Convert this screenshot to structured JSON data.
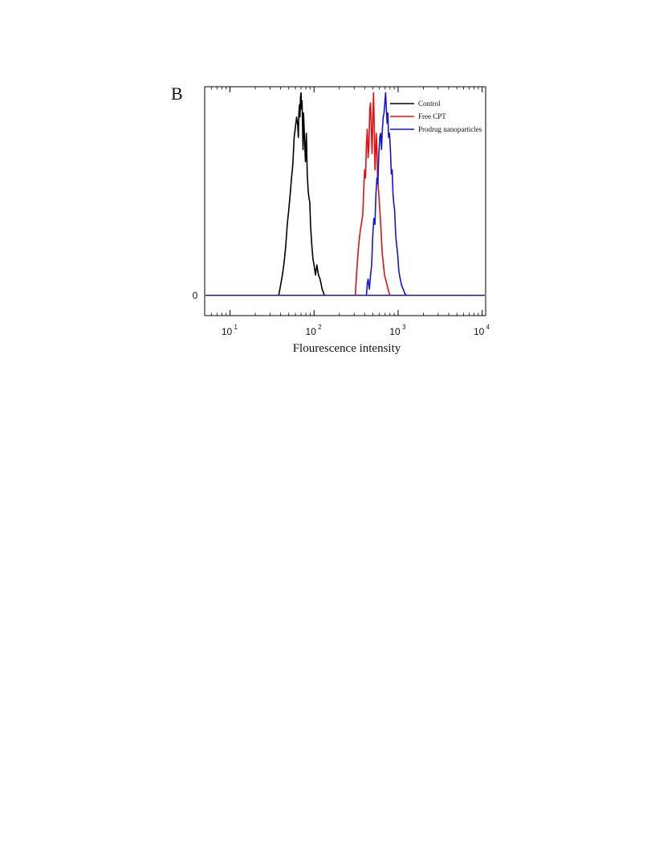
{
  "panel_label": "B",
  "chart_data": {
    "type": "line",
    "title": "",
    "xlabel": "Flourescence intensity",
    "ylabel": "",
    "x_scale": "log",
    "xlim": [
      5,
      11000
    ],
    "ylim": [
      -0.1,
      1.03
    ],
    "x_ticks": [
      {
        "base": "10",
        "exp": "1",
        "value": 10
      },
      {
        "base": "10",
        "exp": "2",
        "value": 100
      },
      {
        "base": "10",
        "exp": "3",
        "value": 1000
      },
      {
        "base": "10",
        "exp": "4",
        "value": 10000
      }
    ],
    "y_ticks": [
      {
        "label": "0",
        "value": 0
      }
    ],
    "grid": false,
    "legend_position": "top-right",
    "series": [
      {
        "name": "Control",
        "color": "#000000",
        "baseline_range": [
          5,
          11000
        ],
        "x": [
          38,
          40,
          42,
          44,
          46,
          48,
          50,
          52,
          54,
          56,
          58,
          60,
          62,
          64,
          65,
          66,
          67,
          68,
          69,
          70,
          71,
          72,
          73,
          74,
          75,
          77,
          79,
          81,
          83,
          85,
          87,
          89,
          91,
          94,
          97,
          100,
          104,
          108,
          113,
          118,
          125,
          133
        ],
        "y": [
          0,
          0.05,
          0.1,
          0.16,
          0.24,
          0.35,
          0.42,
          0.5,
          0.58,
          0.65,
          0.78,
          0.83,
          0.88,
          0.84,
          0.78,
          0.9,
          0.94,
          0.88,
          0.98,
          1.0,
          0.92,
          0.96,
          0.84,
          0.72,
          0.9,
          0.78,
          0.66,
          0.8,
          0.6,
          0.52,
          0.48,
          0.46,
          0.34,
          0.25,
          0.18,
          0.15,
          0.1,
          0.15,
          0.1,
          0.08,
          0.03,
          0
        ]
      },
      {
        "name": "Free CPT",
        "color": "#e01010",
        "baseline_range": [
          5,
          11000
        ],
        "x": [
          310,
          320,
          335,
          350,
          365,
          380,
          390,
          400,
          410,
          420,
          430,
          440,
          450,
          460,
          470,
          480,
          490,
          500,
          510,
          520,
          530,
          540,
          550,
          560,
          570,
          585,
          600,
          615,
          630,
          650,
          670,
          690,
          710,
          740,
          770,
          800
        ],
        "y": [
          0,
          0.1,
          0.22,
          0.3,
          0.35,
          0.4,
          0.52,
          0.62,
          0.58,
          0.75,
          0.82,
          0.68,
          0.74,
          0.92,
          0.95,
          0.82,
          0.7,
          0.86,
          1.0,
          0.84,
          0.62,
          0.7,
          0.8,
          0.72,
          0.58,
          0.52,
          0.45,
          0.38,
          0.3,
          0.2,
          0.15,
          0.1,
          0.08,
          0.05,
          0.02,
          0
        ]
      },
      {
        "name": "Prodrug nanoparticles",
        "color": "#1515cc",
        "baseline_range": [
          5,
          11000
        ],
        "x": [
          420,
          430,
          440,
          455,
          470,
          485,
          500,
          515,
          530,
          545,
          560,
          575,
          590,
          605,
          620,
          635,
          650,
          665,
          680,
          695,
          710,
          725,
          740,
          755,
          770,
          790,
          810,
          830,
          850,
          870,
          890,
          910,
          935,
          960,
          990,
          1020,
          1060,
          1100,
          1150,
          1200,
          1250
        ],
        "y": [
          0,
          0.06,
          0.08,
          0.03,
          0.1,
          0.15,
          0.3,
          0.38,
          0.35,
          0.5,
          0.58,
          0.55,
          0.7,
          0.78,
          0.8,
          0.72,
          0.82,
          0.88,
          0.9,
          0.95,
          1.0,
          0.92,
          0.85,
          0.9,
          0.78,
          0.8,
          0.72,
          0.6,
          0.62,
          0.5,
          0.45,
          0.42,
          0.3,
          0.25,
          0.2,
          0.12,
          0.08,
          0.05,
          0.03,
          0.01,
          0
        ]
      }
    ]
  }
}
